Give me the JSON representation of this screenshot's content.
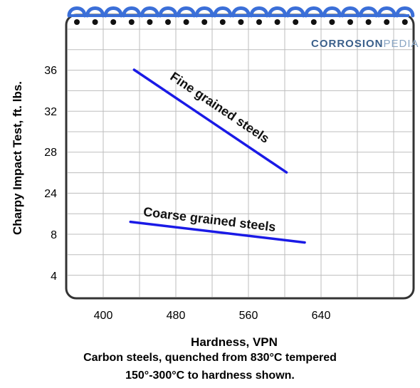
{
  "brand": {
    "part1": "CORROSION",
    "part2": "PEDIA",
    "color1": "#3a5f8a",
    "color2": "#8aa6c4"
  },
  "chart_data": {
    "type": "line",
    "title": "",
    "xlabel": "Hardness, VPN",
    "ylabel": "Charpy Impact Test, ft. lbs.",
    "x_ticks": [
      400,
      480,
      560,
      640
    ],
    "y_tick_labels": [
      "36",
      "32",
      "28",
      "24",
      "8",
      "4"
    ],
    "grid": true,
    "series": [
      {
        "name": "Fine grained steels",
        "color": "#1a1ae6",
        "points": [
          [
            434,
            36
          ],
          [
            602,
            26
          ]
        ]
      },
      {
        "name": "Coarse grained steels",
        "color": "#1a1ae6",
        "points": [
          [
            430,
            9.2
          ],
          [
            622,
            7.2
          ]
        ]
      }
    ]
  },
  "caption": {
    "line1": "Carbon steels, quenched from 830°C tempered",
    "line2": "150°-300°C to hardness shown."
  },
  "colors": {
    "frame": "#333333",
    "grid": "#bdbdbd",
    "spiral": "#3b6fd8",
    "line": "#1a1ae6"
  }
}
